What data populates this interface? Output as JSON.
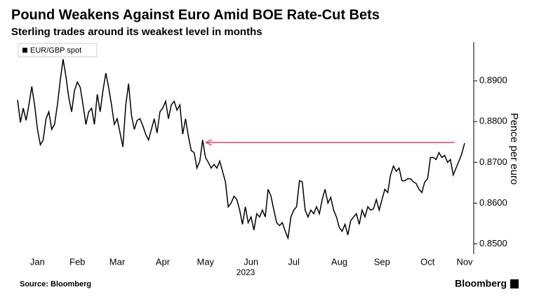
{
  "chart_data": {
    "type": "line",
    "title": "Pound Weakens Against Euro Amid BOE Rate-Cut Bets",
    "subtitle": "Sterling trades around its weakest level in months",
    "y_label": "Pence per euro",
    "year_label": "2023",
    "source": "Source: Bloomberg",
    "brand": "Bloomberg",
    "categories": [
      null,
      null,
      null,
      null,
      null,
      null,
      null,
      "Jan",
      null,
      null,
      null,
      null,
      null,
      null,
      null,
      null,
      null,
      null,
      null,
      null,
      null,
      "Feb",
      null,
      null,
      null,
      null,
      null,
      null,
      null,
      null,
      null,
      null,
      null,
      null,
      null,
      "Mar",
      null,
      null,
      null,
      null,
      null,
      null,
      null,
      null,
      null,
      null,
      null,
      null,
      null,
      null,
      null,
      "Apr",
      null,
      null,
      null,
      null,
      null,
      null,
      null,
      null,
      null,
      null,
      null,
      null,
      null,
      null,
      "May",
      null,
      null,
      null,
      null,
      null,
      null,
      null,
      null,
      null,
      null,
      null,
      null,
      null,
      null,
      null,
      "Jun",
      null,
      null,
      null,
      null,
      null,
      null,
      null,
      null,
      null,
      null,
      null,
      null,
      null,
      null,
      "Jul",
      null,
      null,
      null,
      null,
      null,
      null,
      null,
      null,
      null,
      null,
      null,
      null,
      null,
      null,
      null,
      "Aug",
      null,
      null,
      null,
      null,
      null,
      null,
      null,
      null,
      null,
      null,
      null,
      null,
      null,
      null,
      "Sep",
      null,
      null,
      null,
      null,
      null,
      null,
      null,
      null,
      null,
      null,
      null,
      null,
      null,
      null,
      null,
      "Oct",
      null,
      null,
      null,
      null,
      null,
      null,
      null,
      null,
      null,
      null,
      null,
      null,
      "Nov"
    ],
    "series": [
      {
        "name": "EUR/GBP spot",
        "color": "#000000",
        "values": [
          0.8853,
          0.8798,
          0.8833,
          0.8803,
          0.8841,
          0.8886,
          0.8841,
          0.8781,
          0.8743,
          0.8755,
          0.8807,
          0.8824,
          0.8781,
          0.8793,
          0.8841,
          0.8902,
          0.8953,
          0.891,
          0.8859,
          0.8824,
          0.8876,
          0.8897,
          0.8884,
          0.8841,
          0.8793,
          0.8824,
          0.8833,
          0.8793,
          0.8867,
          0.8824,
          0.8876,
          0.8919,
          0.8884,
          0.8841,
          0.8793,
          0.8807,
          0.8772,
          0.8738,
          0.8841,
          0.8893,
          0.8816,
          0.8781,
          0.8803,
          0.8807,
          0.879,
          0.8769,
          0.8755,
          0.8781,
          0.8807,
          0.8772,
          0.8824,
          0.8833,
          0.885,
          0.8807,
          0.8841,
          0.885,
          0.8828,
          0.8841,
          0.8769,
          0.8807,
          0.8764,
          0.8729,
          0.8724,
          0.8686,
          0.8703,
          0.8755,
          0.8712,
          0.87,
          0.8686,
          0.8695,
          0.8686,
          0.8703,
          0.8678,
          0.8652,
          0.8591,
          0.86,
          0.8617,
          0.8609,
          0.8583,
          0.8548,
          0.8591,
          0.8552,
          0.8566,
          0.8534,
          0.8574,
          0.8566,
          0.8583,
          0.8566,
          0.8634,
          0.8617,
          0.8583,
          0.8552,
          0.8545,
          0.8552,
          0.8531,
          0.8514,
          0.8566,
          0.8583,
          0.8591,
          0.8655,
          0.8652,
          0.8583,
          0.8566,
          0.8583,
          0.8574,
          0.8591,
          0.8574,
          0.8609,
          0.8634,
          0.86,
          0.8614,
          0.8583,
          0.8566,
          0.854,
          0.8531,
          0.8548,
          0.8522,
          0.8557,
          0.8566,
          0.8574,
          0.8548,
          0.8583,
          0.8566,
          0.8591,
          0.8583,
          0.8586,
          0.8609,
          0.8583,
          0.8609,
          0.8634,
          0.8626,
          0.8669,
          0.8691,
          0.8678,
          0.8686,
          0.8655,
          0.8655,
          0.866,
          0.866,
          0.8652,
          0.8648,
          0.8634,
          0.8626,
          0.8652,
          0.866,
          0.8712,
          0.8712,
          0.8707,
          0.8724,
          0.8712,
          0.8717,
          0.87,
          0.8707,
          0.8669,
          0.8686,
          0.8703,
          0.8721,
          0.8747
        ]
      }
    ],
    "ylim": [
      0.8475,
      0.8995
    ],
    "yticks": [
      {
        "value": 0.85,
        "label": "0.8500"
      },
      {
        "value": 0.86,
        "label": "0.8600"
      },
      {
        "value": 0.87,
        "label": "0.8700"
      },
      {
        "value": 0.88,
        "label": "0.8800"
      },
      {
        "value": 0.89,
        "label": "0.8900"
      }
    ],
    "grid": false
  }
}
